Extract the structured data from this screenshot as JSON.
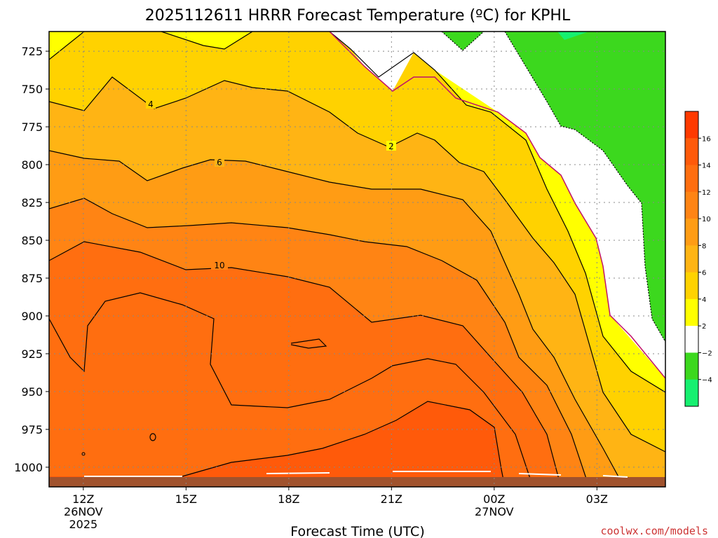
{
  "chart_data": {
    "type": "heatmap",
    "title": "2025112611 HRRR Forecast Temperature (ºC) for KPHL",
    "xlabel": "Forecast Time (UTC)",
    "ylabel": "",
    "y_axis": {
      "ticks": [
        725,
        750,
        775,
        800,
        825,
        850,
        875,
        900,
        925,
        950,
        975,
        1000
      ],
      "range": [
        712,
        1013
      ],
      "inverted": true
    },
    "x_axis": {
      "ticks": [
        {
          "hour": 12,
          "label": "12Z",
          "sub1": "26NOV",
          "sub2": "2025"
        },
        {
          "hour": 15,
          "label": "15Z",
          "sub1": "",
          "sub2": ""
        },
        {
          "hour": 18,
          "label": "18Z",
          "sub1": "",
          "sub2": ""
        },
        {
          "hour": 21,
          "label": "21Z",
          "sub1": "",
          "sub2": ""
        },
        {
          "hour": 24,
          "label": "00Z",
          "sub1": "27NOV",
          "sub2": ""
        },
        {
          "hour": 27,
          "label": "03Z",
          "sub1": "",
          "sub2": ""
        }
      ],
      "range": [
        11,
        29
      ]
    },
    "grid": true,
    "colorbar": {
      "labels": [
        "16",
        "14",
        "12",
        "10",
        "8",
        "6",
        "4",
        "2",
        "−2",
        "−4"
      ],
      "colors": [
        "#ff3a00",
        "#ff5a0a",
        "#ff6e10",
        "#ff8414",
        "#ff9c14",
        "#ffb414",
        "#ffd200",
        "#ffff00",
        "#ffffff",
        "#3cd81e",
        "#16f070"
      ]
    },
    "contour_labels": [
      {
        "text": "4"
      },
      {
        "text": "6"
      },
      {
        "text": "10"
      },
      {
        "text": "2"
      }
    ],
    "fill_colors": {
      "gt12": "#ff5a0a",
      "10_12": "#ff6e10",
      "8_10": "#ff8414",
      "6_8": "#ff9c14",
      "4_6": "#ffb414",
      "2_4": "#ffd200",
      "0_2": "#ffff00",
      "m2_0": "#ffffff",
      "m4_m2": "#3cd81e",
      "lt_m4": "#16f070",
      "terrain": "#a0522d"
    }
  },
  "credit": "coolwx.com/models"
}
